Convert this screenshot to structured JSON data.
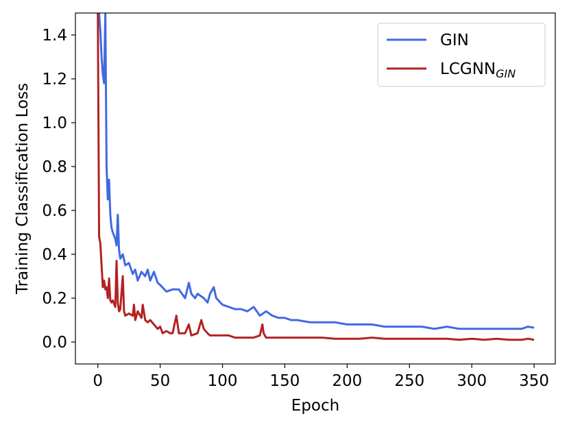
{
  "chart_data": {
    "type": "line",
    "title": "",
    "xlabel": "Epoch",
    "ylabel": "Training Classification Loss",
    "xlim": [
      -18,
      367
    ],
    "ylim": [
      -0.1,
      1.5
    ],
    "xticks": [
      0,
      50,
      100,
      150,
      200,
      250,
      300,
      350
    ],
    "yticks": [
      0.0,
      0.2,
      0.4,
      0.6,
      0.8,
      1.0,
      1.2,
      1.4
    ],
    "xtick_labels": [
      "0",
      "50",
      "100",
      "150",
      "200",
      "250",
      "300",
      "350"
    ],
    "ytick_labels": [
      "0.0",
      "0.2",
      "0.4",
      "0.6",
      "0.8",
      "1.0",
      "1.2",
      "1.4"
    ],
    "grid": false,
    "legend_position": "top-right",
    "series": [
      {
        "name": "GIN",
        "color": "#4169e1",
        "points": [
          [
            0,
            1.5
          ],
          [
            1,
            1.5
          ],
          [
            2,
            1.42
          ],
          [
            3,
            1.3
          ],
          [
            4,
            1.22
          ],
          [
            5,
            1.18
          ],
          [
            6,
            1.5
          ],
          [
            7,
            0.8
          ],
          [
            8,
            0.65
          ],
          [
            9,
            0.74
          ],
          [
            10,
            0.58
          ],
          [
            11,
            0.52
          ],
          [
            12,
            0.5
          ],
          [
            14,
            0.47
          ],
          [
            15,
            0.44
          ],
          [
            16,
            0.58
          ],
          [
            17,
            0.42
          ],
          [
            18,
            0.38
          ],
          [
            20,
            0.4
          ],
          [
            22,
            0.35
          ],
          [
            25,
            0.36
          ],
          [
            28,
            0.31
          ],
          [
            30,
            0.33
          ],
          [
            32,
            0.28
          ],
          [
            35,
            0.32
          ],
          [
            38,
            0.3
          ],
          [
            40,
            0.33
          ],
          [
            42,
            0.28
          ],
          [
            45,
            0.32
          ],
          [
            48,
            0.27
          ],
          [
            50,
            0.26
          ],
          [
            55,
            0.23
          ],
          [
            60,
            0.24
          ],
          [
            65,
            0.24
          ],
          [
            70,
            0.2
          ],
          [
            73,
            0.27
          ],
          [
            75,
            0.22
          ],
          [
            78,
            0.2
          ],
          [
            80,
            0.22
          ],
          [
            85,
            0.2
          ],
          [
            88,
            0.18
          ],
          [
            90,
            0.22
          ],
          [
            93,
            0.25
          ],
          [
            95,
            0.2
          ],
          [
            100,
            0.17
          ],
          [
            105,
            0.16
          ],
          [
            110,
            0.15
          ],
          [
            115,
            0.15
          ],
          [
            120,
            0.14
          ],
          [
            125,
            0.16
          ],
          [
            130,
            0.12
          ],
          [
            135,
            0.14
          ],
          [
            140,
            0.12
          ],
          [
            145,
            0.11
          ],
          [
            150,
            0.11
          ],
          [
            155,
            0.1
          ],
          [
            160,
            0.1
          ],
          [
            170,
            0.09
          ],
          [
            180,
            0.09
          ],
          [
            190,
            0.09
          ],
          [
            200,
            0.08
          ],
          [
            210,
            0.08
          ],
          [
            220,
            0.08
          ],
          [
            230,
            0.07
          ],
          [
            240,
            0.07
          ],
          [
            250,
            0.07
          ],
          [
            260,
            0.07
          ],
          [
            270,
            0.06
          ],
          [
            280,
            0.07
          ],
          [
            290,
            0.06
          ],
          [
            300,
            0.06
          ],
          [
            310,
            0.06
          ],
          [
            320,
            0.06
          ],
          [
            330,
            0.06
          ],
          [
            340,
            0.06
          ],
          [
            345,
            0.07
          ],
          [
            350,
            0.065
          ]
        ]
      },
      {
        "name": "LCGNN_GIN",
        "color": "#b22222",
        "points": [
          [
            0,
            1.5
          ],
          [
            1,
            0.48
          ],
          [
            2,
            0.45
          ],
          [
            3,
            0.35
          ],
          [
            4,
            0.25
          ],
          [
            5,
            0.28
          ],
          [
            6,
            0.24
          ],
          [
            7,
            0.25
          ],
          [
            8,
            0.2
          ],
          [
            9,
            0.29
          ],
          [
            10,
            0.19
          ],
          [
            11,
            0.18
          ],
          [
            12,
            0.19
          ],
          [
            14,
            0.16
          ],
          [
            15,
            0.37
          ],
          [
            16,
            0.18
          ],
          [
            17,
            0.14
          ],
          [
            18,
            0.15
          ],
          [
            20,
            0.3
          ],
          [
            21,
            0.14
          ],
          [
            22,
            0.12
          ],
          [
            25,
            0.13
          ],
          [
            28,
            0.12
          ],
          [
            29,
            0.17
          ],
          [
            30,
            0.1
          ],
          [
            32,
            0.14
          ],
          [
            35,
            0.11
          ],
          [
            36,
            0.17
          ],
          [
            38,
            0.1
          ],
          [
            40,
            0.09
          ],
          [
            42,
            0.1
          ],
          [
            45,
            0.08
          ],
          [
            48,
            0.06
          ],
          [
            50,
            0.07
          ],
          [
            52,
            0.04
          ],
          [
            55,
            0.05
          ],
          [
            58,
            0.04
          ],
          [
            60,
            0.04
          ],
          [
            63,
            0.12
          ],
          [
            65,
            0.04
          ],
          [
            70,
            0.04
          ],
          [
            73,
            0.08
          ],
          [
            75,
            0.03
          ],
          [
            80,
            0.04
          ],
          [
            83,
            0.1
          ],
          [
            85,
            0.06
          ],
          [
            88,
            0.04
          ],
          [
            90,
            0.03
          ],
          [
            95,
            0.03
          ],
          [
            100,
            0.03
          ],
          [
            105,
            0.03
          ],
          [
            110,
            0.02
          ],
          [
            115,
            0.02
          ],
          [
            120,
            0.02
          ],
          [
            125,
            0.02
          ],
          [
            130,
            0.03
          ],
          [
            132,
            0.08
          ],
          [
            133,
            0.04
          ],
          [
            135,
            0.02
          ],
          [
            140,
            0.02
          ],
          [
            150,
            0.02
          ],
          [
            160,
            0.02
          ],
          [
            170,
            0.02
          ],
          [
            180,
            0.02
          ],
          [
            190,
            0.015
          ],
          [
            200,
            0.015
          ],
          [
            210,
            0.015
          ],
          [
            220,
            0.02
          ],
          [
            230,
            0.015
          ],
          [
            240,
            0.015
          ],
          [
            250,
            0.015
          ],
          [
            260,
            0.015
          ],
          [
            270,
            0.015
          ],
          [
            280,
            0.015
          ],
          [
            290,
            0.01
          ],
          [
            300,
            0.015
          ],
          [
            310,
            0.01
          ],
          [
            320,
            0.015
          ],
          [
            330,
            0.01
          ],
          [
            340,
            0.01
          ],
          [
            345,
            0.015
          ],
          [
            350,
            0.01
          ]
        ]
      }
    ]
  },
  "legend": {
    "entries": [
      {
        "base": "GIN",
        "sub": ""
      },
      {
        "base": "LCGNN",
        "sub": "GIN"
      }
    ]
  }
}
